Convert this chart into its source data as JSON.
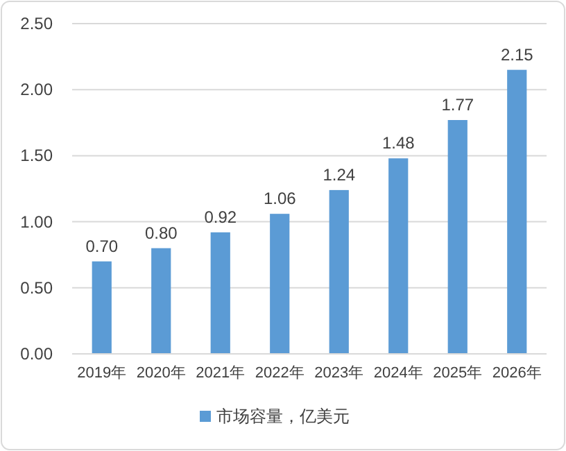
{
  "chart_data": {
    "type": "bar",
    "categories": [
      "2019年",
      "2020年",
      "2021年",
      "2022年",
      "2023年",
      "2024年",
      "2025年",
      "2026年"
    ],
    "series": [
      {
        "name": "市场容量，亿美元",
        "color": "#5b9bd5",
        "values": [
          0.7,
          0.8,
          0.92,
          1.06,
          1.24,
          1.48,
          1.77,
          2.15
        ],
        "value_labels": [
          "0.70",
          "0.80",
          "0.92",
          "1.06",
          "1.24",
          "1.48",
          "1.77",
          "2.15"
        ]
      }
    ],
    "ylim": [
      0,
      2.5
    ],
    "yticks": [
      {
        "value": 0,
        "label": "0.00"
      },
      {
        "value": 0.5,
        "label": "0.50"
      },
      {
        "value": 1,
        "label": "1.00"
      },
      {
        "value": 1.5,
        "label": "1.50"
      },
      {
        "value": 2,
        "label": "2.00"
      },
      {
        "value": 2.5,
        "label": "2.50"
      }
    ],
    "grid": "y",
    "legend": "bottom"
  }
}
